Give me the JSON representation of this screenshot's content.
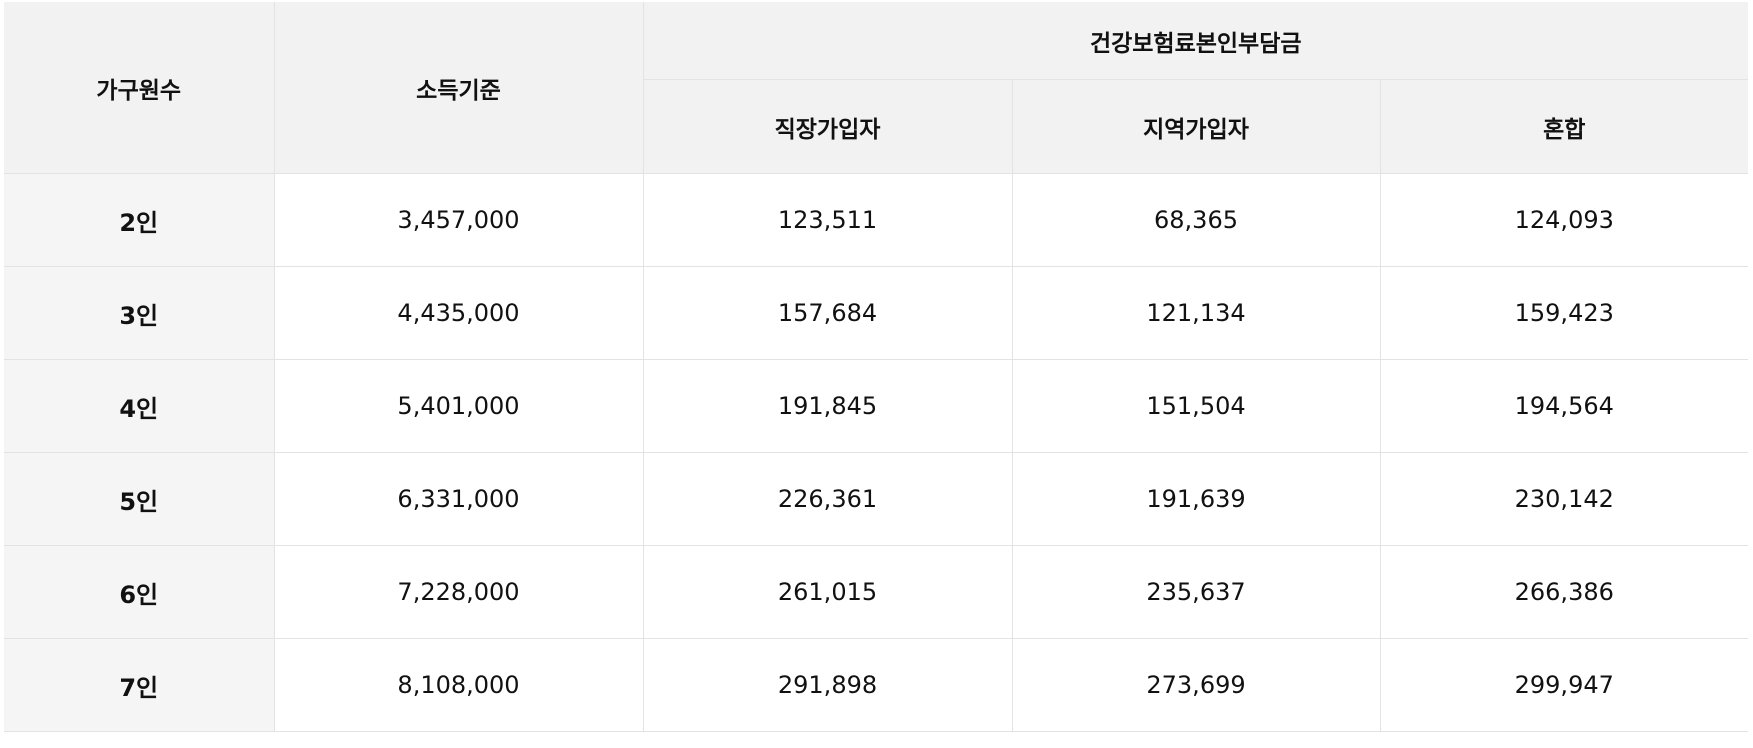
{
  "table": {
    "headers": {
      "household_count": "가구원수",
      "income_standard": "소득기준",
      "premium_group": "건강보험료본인부담금",
      "employee": "직장가입자",
      "regional": "지역가입자",
      "mixed": "혼합"
    },
    "rows": [
      {
        "household": "2인",
        "income": "3,457,000",
        "employee": "123,511",
        "regional": "68,365",
        "mixed": "124,093"
      },
      {
        "household": "3인",
        "income": "4,435,000",
        "employee": "157,684",
        "regional": "121,134",
        "mixed": "159,423"
      },
      {
        "household": "4인",
        "income": "5,401,000",
        "employee": "191,845",
        "regional": "151,504",
        "mixed": "194,564"
      },
      {
        "household": "5인",
        "income": "6,331,000",
        "employee": "226,361",
        "regional": "191,639",
        "mixed": "230,142"
      },
      {
        "household": "6인",
        "income": "7,228,000",
        "employee": "261,015",
        "regional": "235,637",
        "mixed": "266,386"
      },
      {
        "household": "7인",
        "income": "8,108,000",
        "employee": "291,898",
        "regional": "273,699",
        "mixed": "299,947"
      }
    ]
  }
}
